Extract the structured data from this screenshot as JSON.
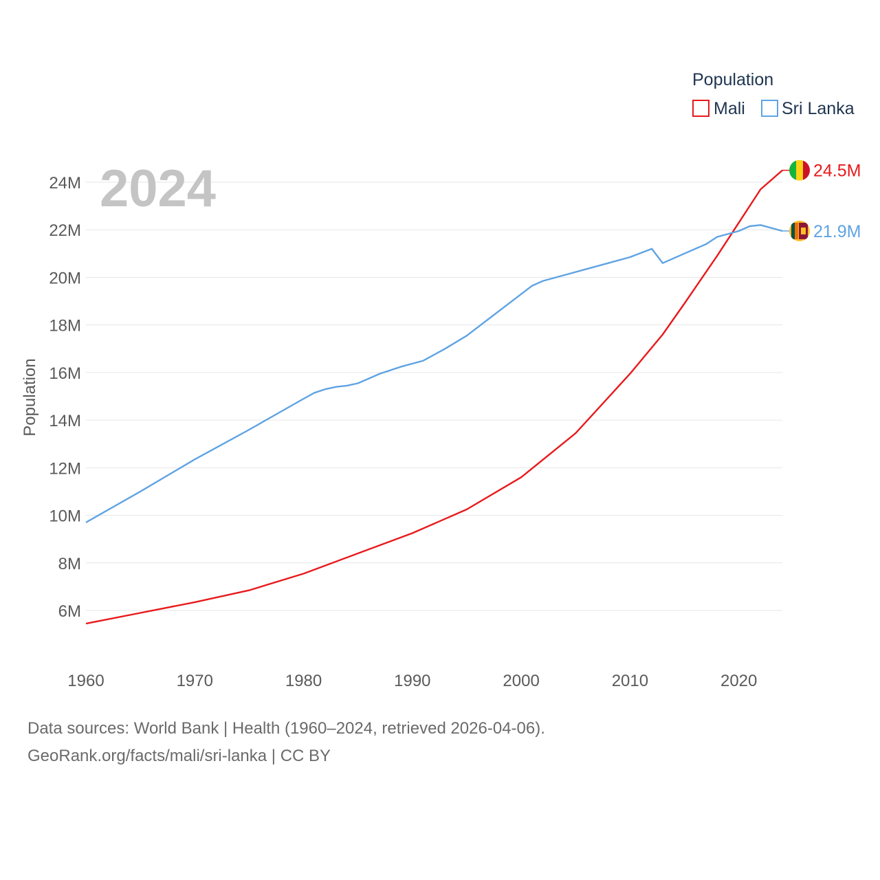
{
  "chart_data": {
    "type": "line",
    "title": "",
    "year_label": "2024",
    "xlabel": "",
    "ylabel": "Population",
    "xlim": [
      1960,
      2024
    ],
    "ylim": [
      4500000,
      25000000
    ],
    "x_ticks": [
      1960,
      1970,
      1980,
      1990,
      2000,
      2010,
      2020
    ],
    "x_tick_labels": [
      "1960",
      "1970",
      "1980",
      "1990",
      "2000",
      "2010",
      "2020"
    ],
    "y_ticks": [
      6000000,
      8000000,
      10000000,
      12000000,
      14000000,
      16000000,
      18000000,
      20000000,
      22000000,
      24000000
    ],
    "y_tick_labels": [
      "6M",
      "8M",
      "10M",
      "12M",
      "14M",
      "16M",
      "18M",
      "20M",
      "22M",
      "24M"
    ],
    "grid": true,
    "legend": {
      "title": "Population",
      "position": "top-right",
      "entries": [
        "Mali",
        "Sri Lanka"
      ]
    },
    "series": [
      {
        "name": "Mali",
        "color": "#e8191c",
        "end_label": "24.5M",
        "flag": "mali-flag",
        "points": [
          [
            1960,
            5450000
          ],
          [
            1965,
            5900000
          ],
          [
            1970,
            6350000
          ],
          [
            1975,
            6850000
          ],
          [
            1980,
            7550000
          ],
          [
            1985,
            8400000
          ],
          [
            1990,
            9250000
          ],
          [
            1995,
            10250000
          ],
          [
            2000,
            11600000
          ],
          [
            2005,
            13450000
          ],
          [
            2010,
            15950000
          ],
          [
            2013,
            17600000
          ],
          [
            2015,
            18900000
          ],
          [
            2018,
            20900000
          ],
          [
            2020,
            22300000
          ],
          [
            2022,
            23700000
          ],
          [
            2024,
            24500000
          ]
        ]
      },
      {
        "name": "Sri Lanka",
        "color": "#5fa3e3",
        "end_label": "21.9M",
        "flag": "sri-lanka-flag",
        "points": [
          [
            1960,
            9700000
          ],
          [
            1965,
            11000000
          ],
          [
            1970,
            12350000
          ],
          [
            1975,
            13600000
          ],
          [
            1980,
            14900000
          ],
          [
            1981,
            15150000
          ],
          [
            1982,
            15300000
          ],
          [
            1983,
            15400000
          ],
          [
            1984,
            15450000
          ],
          [
            1985,
            15550000
          ],
          [
            1987,
            15950000
          ],
          [
            1989,
            16250000
          ],
          [
            1991,
            16500000
          ],
          [
            1993,
            17000000
          ],
          [
            1995,
            17550000
          ],
          [
            1997,
            18250000
          ],
          [
            1999,
            18950000
          ],
          [
            2001,
            19650000
          ],
          [
            2002,
            19850000
          ],
          [
            2004,
            20100000
          ],
          [
            2006,
            20350000
          ],
          [
            2008,
            20600000
          ],
          [
            2010,
            20850000
          ],
          [
            2012,
            21200000
          ],
          [
            2013,
            20600000
          ],
          [
            2015,
            21000000
          ],
          [
            2017,
            21400000
          ],
          [
            2018,
            21700000
          ],
          [
            2020,
            21950000
          ],
          [
            2021,
            22150000
          ],
          [
            2022,
            22200000
          ],
          [
            2024,
            21950000
          ]
        ]
      }
    ]
  },
  "footer": {
    "sources": "Data sources: World Bank | Health (1960–2024, retrieved 2026-04-06).",
    "credit": "GeoRank.org/facts/mali/sri-lanka | CC BY"
  }
}
